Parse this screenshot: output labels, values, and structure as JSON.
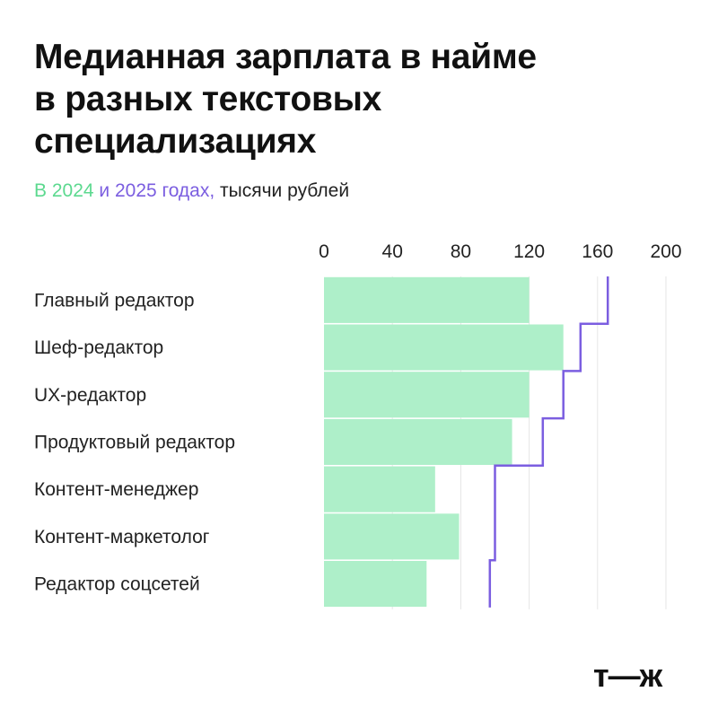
{
  "header": {
    "title_line1": "Медианная зарплата в найме",
    "title_line2": "в разных текстовых",
    "title_line3": "специализациях",
    "subtitle_part1": "В 2024",
    "subtitle_part2": " и 2025 годах,",
    "subtitle_part3": " тысячи рублей"
  },
  "logo": {
    "text": "т—ж"
  },
  "colors": {
    "series_2024": "#aeefc9",
    "series_2025": "#7b5ee0",
    "gridline": "#e6e6e6"
  },
  "chart_data": {
    "type": "bar",
    "orientation": "horizontal",
    "categories": [
      "Главный редактор",
      "Шеф-редактор",
      "UX-редактор",
      "Продуктовый редактор",
      "Контент-менеджер",
      "Контент-маркетолог",
      "Редактор соцсетей"
    ],
    "series": [
      {
        "name": "2024",
        "style": "bar",
        "values": [
          120,
          140,
          120,
          110,
          65,
          79,
          60
        ]
      },
      {
        "name": "2025",
        "style": "step-line",
        "values": [
          166,
          150,
          140,
          128,
          100,
          100,
          97
        ]
      }
    ],
    "xticks": [
      0,
      40,
      80,
      120,
      160,
      200
    ],
    "xtick_labels": [
      "0",
      "40",
      "80",
      "120",
      "160",
      "200"
    ],
    "xlim": [
      0,
      200
    ],
    "xaxis_position": "top",
    "grid": true,
    "legend": "none"
  }
}
